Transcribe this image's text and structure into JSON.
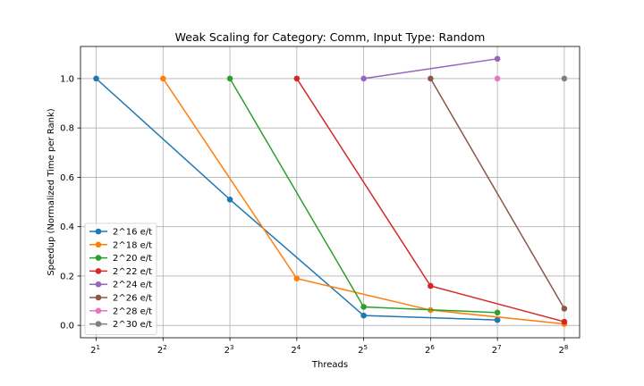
{
  "chart_data": {
    "type": "line",
    "title": "Weak Scaling for Category: Comm, Input Type: Random",
    "xlabel": "Threads",
    "ylabel": "Speedup (Normalized Time per Rank)",
    "x_scale": "log2",
    "x_ticks": [
      {
        "value": 2,
        "base": "2",
        "exp": "1"
      },
      {
        "value": 4,
        "base": "2",
        "exp": "2"
      },
      {
        "value": 8,
        "base": "2",
        "exp": "3"
      },
      {
        "value": 16,
        "base": "2",
        "exp": "4"
      },
      {
        "value": 32,
        "base": "2",
        "exp": "5"
      },
      {
        "value": 64,
        "base": "2",
        "exp": "6"
      },
      {
        "value": 128,
        "base": "2",
        "exp": "7"
      },
      {
        "value": 256,
        "base": "2",
        "exp": "8"
      }
    ],
    "y_ticks": [
      "0.0",
      "0.2",
      "0.4",
      "0.6",
      "0.8",
      "1.0"
    ],
    "xlim": [
      1.7,
      300
    ],
    "ylim": [
      -0.05,
      1.13
    ],
    "grid": true,
    "legend_position": "lower-left",
    "series": [
      {
        "name": "2^16 e/t",
        "color": "#1f77b4",
        "x": [
          2,
          8,
          32,
          128
        ],
        "y": [
          1.0,
          0.51,
          0.04,
          0.022
        ]
      },
      {
        "name": "2^18 e/t",
        "color": "#ff7f0e",
        "x": [
          4,
          16,
          64,
          256
        ],
        "y": [
          1.0,
          0.19,
          0.062,
          0.006
        ]
      },
      {
        "name": "2^20 e/t",
        "color": "#2ca02c",
        "x": [
          8,
          32,
          128
        ],
        "y": [
          1.0,
          0.075,
          0.052
        ]
      },
      {
        "name": "2^22 e/t",
        "color": "#d62728",
        "x": [
          16,
          64,
          256
        ],
        "y": [
          1.0,
          0.16,
          0.015
        ]
      },
      {
        "name": "2^24 e/t",
        "color": "#9467bd",
        "x": [
          32,
          128
        ],
        "y": [
          1.0,
          1.08
        ]
      },
      {
        "name": "2^26 e/t",
        "color": "#8c564b",
        "x": [
          64,
          256
        ],
        "y": [
          1.0,
          0.068
        ]
      },
      {
        "name": "2^28 e/t",
        "color": "#e377c2",
        "x": [
          128
        ],
        "y": [
          1.0
        ]
      },
      {
        "name": "2^30 e/t",
        "color": "#7f7f7f",
        "x": [
          256
        ],
        "y": [
          1.0
        ]
      }
    ]
  }
}
